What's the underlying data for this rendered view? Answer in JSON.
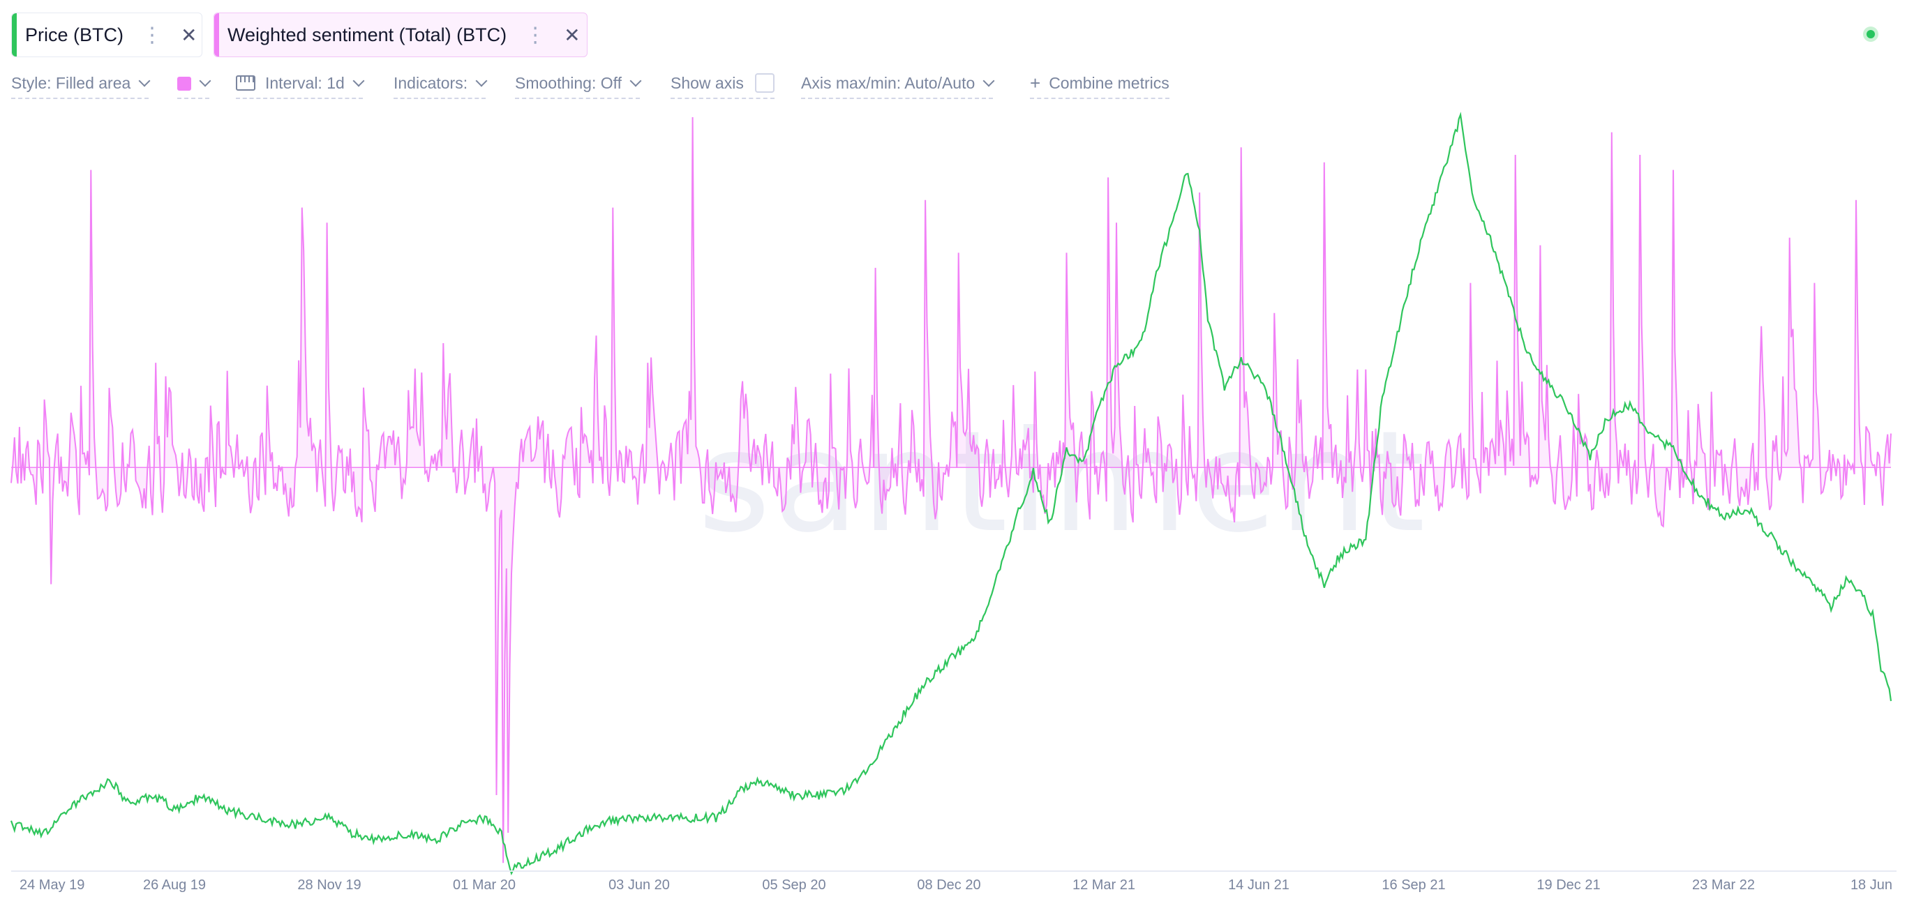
{
  "metrics": [
    {
      "label": "Price (BTC)",
      "color": "#2fc55c"
    },
    {
      "label": "Weighted sentiment (Total) (BTC)",
      "color": "#f181f6"
    }
  ],
  "toolbar": {
    "style": "Style: Filled area",
    "interval": "Interval: 1d",
    "indicators": "Indicators:",
    "smoothing": "Smoothing: Off",
    "show_axis": "Show axis",
    "axis_maxmin": "Axis max/min: Auto/Auto",
    "combine": "Combine metrics",
    "color_swatch": "#f181f6"
  },
  "watermark": "santiment",
  "chart_data": {
    "type": "line",
    "x_ticks": [
      "24 May 19",
      "26 Aug 19",
      "28 Nov 19",
      "01 Mar 20",
      "03 Jun 20",
      "05 Sep 20",
      "08 Dec 20",
      "12 Mar 21",
      "14 Jun 21",
      "16 Sep 21",
      "19 Dec 21",
      "23 Mar 22",
      "18 Jun"
    ],
    "x_range": [
      "2019-05-18",
      "2022-06-18"
    ],
    "grid": false,
    "series": [
      {
        "name": "Price (BTC)",
        "color": "#2fc55c",
        "style": "line",
        "relative_values": [
          [
            0,
            0.06
          ],
          [
            20,
            0.05
          ],
          [
            40,
            0.09
          ],
          [
            60,
            0.12
          ],
          [
            70,
            0.09
          ],
          [
            85,
            0.1
          ],
          [
            100,
            0.08
          ],
          [
            115,
            0.1
          ],
          [
            130,
            0.08
          ],
          [
            150,
            0.07
          ],
          [
            170,
            0.06
          ],
          [
            190,
            0.07
          ],
          [
            205,
            0.05
          ],
          [
            220,
            0.04
          ],
          [
            240,
            0.05
          ],
          [
            255,
            0.04
          ],
          [
            270,
            0.06
          ],
          [
            285,
            0.07
          ],
          [
            295,
            0.05
          ],
          [
            300,
            0.0
          ],
          [
            310,
            0.01
          ],
          [
            330,
            0.03
          ],
          [
            350,
            0.06
          ],
          [
            370,
            0.07
          ],
          [
            390,
            0.07
          ],
          [
            410,
            0.07
          ],
          [
            425,
            0.07
          ],
          [
            440,
            0.11
          ],
          [
            455,
            0.12
          ],
          [
            470,
            0.1
          ],
          [
            490,
            0.1
          ],
          [
            505,
            0.11
          ],
          [
            520,
            0.15
          ],
          [
            535,
            0.2
          ],
          [
            550,
            0.25
          ],
          [
            565,
            0.28
          ],
          [
            580,
            0.31
          ],
          [
            595,
            0.4
          ],
          [
            605,
            0.47
          ],
          [
            615,
            0.53
          ],
          [
            625,
            0.46
          ],
          [
            635,
            0.56
          ],
          [
            645,
            0.54
          ],
          [
            655,
            0.62
          ],
          [
            665,
            0.67
          ],
          [
            680,
            0.7
          ],
          [
            690,
            0.8
          ],
          [
            700,
            0.87
          ],
          [
            707,
            0.93
          ],
          [
            715,
            0.85
          ],
          [
            720,
            0.73
          ],
          [
            730,
            0.64
          ],
          [
            740,
            0.68
          ],
          [
            755,
            0.64
          ],
          [
            770,
            0.52
          ],
          [
            780,
            0.43
          ],
          [
            790,
            0.38
          ],
          [
            800,
            0.42
          ],
          [
            815,
            0.44
          ],
          [
            825,
            0.63
          ],
          [
            835,
            0.72
          ],
          [
            845,
            0.81
          ],
          [
            855,
            0.88
          ],
          [
            865,
            0.95
          ],
          [
            872,
            1.0
          ],
          [
            880,
            0.89
          ],
          [
            890,
            0.84
          ],
          [
            900,
            0.77
          ],
          [
            910,
            0.7
          ],
          [
            920,
            0.66
          ],
          [
            935,
            0.62
          ],
          [
            950,
            0.55
          ],
          [
            960,
            0.6
          ],
          [
            975,
            0.62
          ],
          [
            985,
            0.58
          ],
          [
            1000,
            0.56
          ],
          [
            1015,
            0.5
          ],
          [
            1030,
            0.47
          ],
          [
            1045,
            0.48
          ],
          [
            1060,
            0.44
          ],
          [
            1075,
            0.4
          ],
          [
            1085,
            0.38
          ],
          [
            1095,
            0.35
          ],
          [
            1105,
            0.39
          ],
          [
            1115,
            0.36
          ],
          [
            1120,
            0.34
          ],
          [
            1125,
            0.27
          ],
          [
            1131,
            0.23
          ]
        ]
      },
      {
        "name": "Weighted sentiment (Total) (BTC)",
        "color": "#f181f6",
        "style": "filled area",
        "baseline_relative": 0.535,
        "relative_values_seed": 20190518,
        "relative_spikes": [
          [
            24,
            0.38
          ],
          [
            48,
            0.93
          ],
          [
            175,
            0.88
          ],
          [
            190,
            0.86
          ],
          [
            260,
            0.7
          ],
          [
            292,
            0.1
          ],
          [
            296,
            0.01
          ],
          [
            299,
            0.05
          ],
          [
            352,
            0.71
          ],
          [
            362,
            0.88
          ],
          [
            410,
            1.0
          ],
          [
            520,
            0.8
          ],
          [
            550,
            0.89
          ],
          [
            570,
            0.82
          ],
          [
            635,
            0.82
          ],
          [
            660,
            0.92
          ],
          [
            665,
            0.86
          ],
          [
            715,
            0.9
          ],
          [
            740,
            0.96
          ],
          [
            760,
            0.74
          ],
          [
            790,
            0.94
          ],
          [
            878,
            0.78
          ],
          [
            905,
            0.95
          ],
          [
            920,
            0.83
          ],
          [
            963,
            0.98
          ],
          [
            980,
            0.95
          ],
          [
            1000,
            0.93
          ],
          [
            1070,
            0.84
          ],
          [
            1085,
            0.78
          ],
          [
            1110,
            0.89
          ],
          [
            1131,
            0.58
          ]
        ]
      }
    ]
  }
}
